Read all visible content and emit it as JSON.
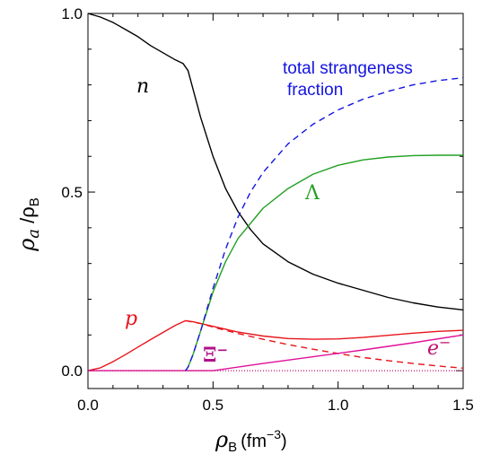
{
  "chart_data": {
    "type": "line",
    "xlabel_main": "ρ",
    "xlabel_sub": "B",
    "xlabel_unit": "(fm",
    "xlabel_exp": "−3",
    "xlabel_close": ")",
    "ylabel_main": "ρ",
    "ylabel_sub_a": "a",
    "ylabel_slash": " /ρ",
    "ylabel_sub_b": "B",
    "xlim": [
      0.0,
      1.5
    ],
    "ylim": [
      -0.05,
      1.0
    ],
    "x_ticks": [
      {
        "value": 0.0,
        "label": "0.0"
      },
      {
        "value": 0.5,
        "label": "0.5"
      },
      {
        "value": 1.0,
        "label": "1.0"
      },
      {
        "value": 1.5,
        "label": "1.5"
      }
    ],
    "y_ticks": [
      {
        "value": 0.0,
        "label": "0.0"
      },
      {
        "value": 0.5,
        "label": "0.5"
      },
      {
        "value": 1.0,
        "label": "1.0"
      }
    ],
    "series": [
      {
        "name": "n",
        "color": "#000000",
        "dash": "solid",
        "x": [
          0.0,
          0.05,
          0.1,
          0.15,
          0.2,
          0.25,
          0.3,
          0.35,
          0.38,
          0.4,
          0.45,
          0.5,
          0.55,
          0.6,
          0.65,
          0.7,
          0.8,
          0.9,
          1.0,
          1.1,
          1.2,
          1.3,
          1.4,
          1.5
        ],
        "y": [
          1.0,
          0.99,
          0.975,
          0.955,
          0.935,
          0.91,
          0.89,
          0.87,
          0.86,
          0.84,
          0.71,
          0.6,
          0.51,
          0.445,
          0.395,
          0.355,
          0.305,
          0.27,
          0.245,
          0.225,
          0.205,
          0.19,
          0.178,
          0.17
        ]
      },
      {
        "name": "p",
        "color": "#e8141c",
        "dash": "solid",
        "x": [
          0.0,
          0.05,
          0.1,
          0.15,
          0.2,
          0.25,
          0.3,
          0.35,
          0.39,
          0.42,
          0.5,
          0.6,
          0.7,
          0.8,
          0.9,
          1.0,
          1.1,
          1.2,
          1.3,
          1.4,
          1.5
        ],
        "y": [
          0.0,
          0.008,
          0.025,
          0.045,
          0.066,
          0.087,
          0.107,
          0.127,
          0.14,
          0.137,
          0.124,
          0.108,
          0.097,
          0.09,
          0.088,
          0.089,
          0.093,
          0.099,
          0.105,
          0.11,
          0.113
        ]
      },
      {
        "name": "p-dashed",
        "color": "#e8141c",
        "dash": "dashed",
        "x": [
          0.39,
          0.45,
          0.5,
          0.6,
          0.7,
          0.8,
          0.9,
          1.0,
          1.1,
          1.2,
          1.3,
          1.4,
          1.5
        ],
        "y": [
          0.14,
          0.132,
          0.122,
          0.104,
          0.088,
          0.073,
          0.06,
          0.048,
          0.037,
          0.028,
          0.02,
          0.013,
          0.007
        ]
      },
      {
        "name": "Λ",
        "color": "#22a022",
        "dash": "solid",
        "x": [
          0.39,
          0.4,
          0.42,
          0.45,
          0.5,
          0.55,
          0.6,
          0.7,
          0.8,
          0.9,
          1.0,
          1.1,
          1.2,
          1.3,
          1.4,
          1.5
        ],
        "y": [
          0.0,
          0.01,
          0.045,
          0.11,
          0.22,
          0.305,
          0.37,
          0.455,
          0.51,
          0.55,
          0.575,
          0.59,
          0.598,
          0.602,
          0.603,
          0.603
        ]
      },
      {
        "name": "Ξ−",
        "color": "#e0109a",
        "dash": "solid",
        "x": [
          0.0,
          0.5,
          0.52,
          0.7,
          0.9,
          1.1,
          1.3,
          1.5
        ],
        "y": [
          0.0,
          0.0,
          0.002,
          0.02,
          0.039,
          0.058,
          0.078,
          0.1
        ]
      },
      {
        "name": "e−",
        "color": "#c0106e",
        "dash": "dotted",
        "x": [
          0.0,
          0.3,
          0.6,
          0.9,
          1.2,
          1.5
        ],
        "y": [
          0.0,
          0.0,
          0.0,
          0.0,
          0.0,
          0.0
        ]
      },
      {
        "name": "total strangeness fraction",
        "color": "#1414e0",
        "dash": "dashed",
        "x": [
          0.39,
          0.4,
          0.42,
          0.45,
          0.5,
          0.55,
          0.6,
          0.65,
          0.7,
          0.8,
          0.9,
          1.0,
          1.1,
          1.2,
          1.3,
          1.4,
          1.5
        ],
        "y": [
          0.0,
          0.01,
          0.045,
          0.11,
          0.23,
          0.34,
          0.43,
          0.5,
          0.555,
          0.635,
          0.69,
          0.73,
          0.76,
          0.782,
          0.8,
          0.812,
          0.82
        ]
      }
    ],
    "labels": {
      "n": "n",
      "p": "p",
      "lambda": "Λ",
      "xi": "Ξ",
      "xi_sup": "−",
      "e": "e",
      "e_sup": "−",
      "strange_line1": "total strangeness",
      "strange_line2": "fraction"
    },
    "colors": {
      "n": "#000000",
      "p": "#e8141c",
      "lambda": "#22a022",
      "xi": "#b0108a",
      "e": "#c0106e",
      "strange": "#1414e0"
    },
    "baseline": 0.0
  }
}
